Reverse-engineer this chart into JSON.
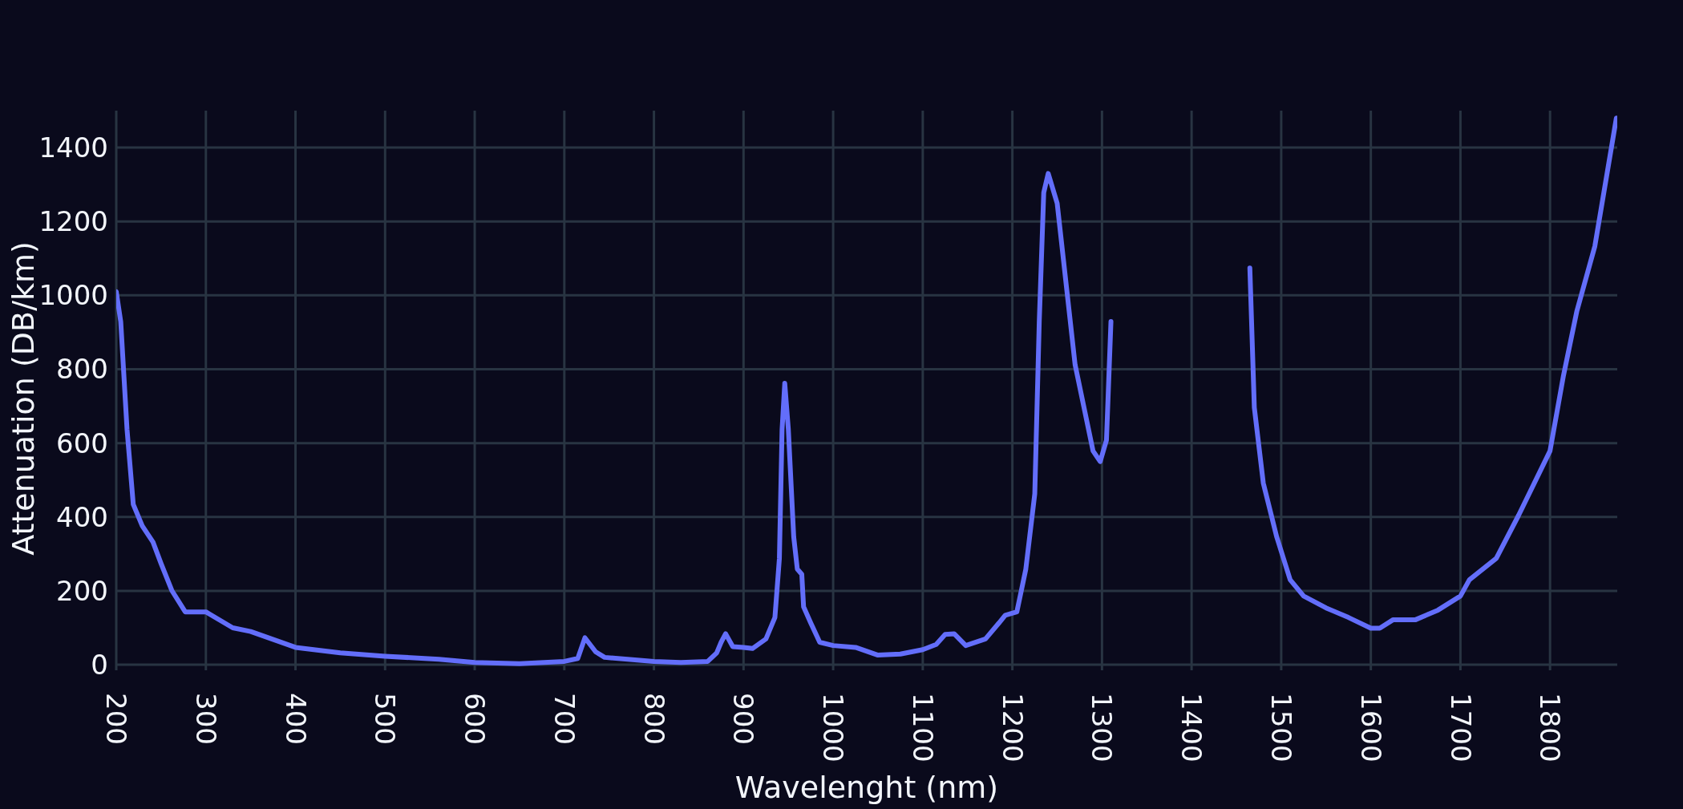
{
  "chart_data": {
    "type": "line",
    "xlabel": "Wavelenght (nm)",
    "ylabel": "Attenuation (DB/km)",
    "x": [
      200,
      205,
      212,
      219,
      229,
      241,
      250,
      262,
      277,
      300,
      330,
      350,
      400,
      450,
      500,
      560,
      600,
      650,
      700,
      715,
      723,
      735,
      745,
      800,
      830,
      860,
      870,
      875,
      880,
      888,
      900,
      910,
      925,
      935,
      940,
      943,
      946,
      950,
      956,
      960,
      965,
      967,
      975,
      985,
      1000,
      1025,
      1050,
      1075,
      1100,
      1115,
      1125,
      1135,
      1148,
      1170,
      1185,
      1192,
      1205,
      1215,
      1225,
      1230,
      1235,
      1240,
      1250,
      1270,
      1290,
      1298,
      1305,
      1310,
      1325,
      1390,
      1459,
      1465,
      1470,
      1480,
      1495,
      1510,
      1525,
      1550,
      1575,
      1600,
      1610,
      1625,
      1650,
      1675,
      1700,
      1710,
      1740,
      1765,
      1800,
      1815,
      1830,
      1850,
      1874
    ],
    "series": [
      {
        "color": "#636efa",
        "values": [
          1010,
          929,
          638,
          434,
          376,
          332,
          274,
          201,
          143,
          143,
          100,
          90,
          47,
          32,
          23,
          15,
          6,
          3,
          9,
          17,
          73,
          35,
          20,
          9,
          6,
          9,
          32,
          61,
          84,
          49,
          47,
          44,
          70,
          128,
          288,
          637,
          762,
          637,
          346,
          259,
          245,
          157,
          113,
          61,
          52,
          47,
          26,
          29,
          41,
          55,
          82,
          84,
          52,
          70,
          113,
          134,
          143,
          259,
          463,
          929,
          1278,
          1330,
          1249,
          812,
          579,
          550,
          608,
          929,
          null,
          null,
          null,
          1074,
          696,
          492,
          346,
          230,
          186,
          154,
          128,
          99,
          99,
          122,
          122,
          148,
          186,
          230,
          288,
          405,
          579,
          783,
          958,
          1133,
          1480
        ]
      }
    ],
    "xlim": [
      200,
      1875
    ],
    "ylim": [
      -15,
      1500
    ],
    "xticks": [
      200,
      300,
      400,
      500,
      600,
      700,
      800,
      900,
      1000,
      1100,
      1200,
      1300,
      1400,
      1500,
      1600,
      1700,
      1800
    ],
    "yticks": [
      0,
      200,
      400,
      600,
      800,
      1000,
      1200,
      1400
    ],
    "grid": true,
    "line_style": "solid",
    "marker": "none"
  }
}
